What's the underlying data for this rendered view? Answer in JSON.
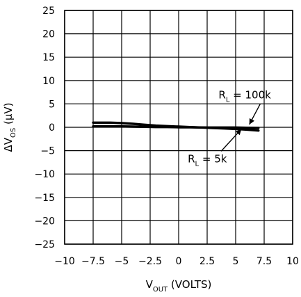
{
  "chart_data": {
    "type": "line",
    "xlabel": {
      "main": "V",
      "sub": "OUT",
      "rest": " (VOLTS)"
    },
    "ylabel": {
      "main": "ΔV",
      "sub": "OS",
      "rest": " (μV)"
    },
    "xlim": [
      -10,
      10
    ],
    "ylim": [
      -25,
      25
    ],
    "x_ticks": [
      -10,
      -7.5,
      -5,
      -2.5,
      0,
      2.5,
      5,
      7.5,
      10
    ],
    "x_tick_labels": [
      "−10",
      "−7.5",
      "−5",
      "−2.5",
      "0",
      "2.5",
      "5",
      "7.5",
      "10"
    ],
    "y_ticks": [
      25,
      20,
      15,
      10,
      5,
      0,
      -5,
      -10,
      -15,
      -20,
      -25
    ],
    "y_tick_labels": [
      "25",
      "20",
      "15",
      "10",
      "5",
      "0",
      "−5",
      "−10",
      "−15",
      "−20",
      "−25"
    ],
    "grid": true,
    "series": [
      {
        "name": "R_L = 100k",
        "label_main": "R",
        "label_sub": "L",
        "label_rest": " = 100k",
        "x": [
          -7.5,
          -6,
          -5,
          -4,
          -3,
          -2,
          -1,
          0,
          1,
          2,
          3,
          4,
          5,
          6,
          7
        ],
        "y": [
          1.0,
          1.0,
          0.9,
          0.75,
          0.55,
          0.35,
          0.25,
          0.15,
          0.05,
          -0.05,
          -0.15,
          -0.25,
          -0.35,
          -0.5,
          -0.7
        ]
      },
      {
        "name": "R_L = 5k",
        "label_main": "R",
        "label_sub": "L",
        "label_rest": " = 5k",
        "x": [
          -7.5,
          -6,
          -5,
          -4,
          -3,
          -2,
          -1,
          0,
          1,
          2,
          3,
          4,
          5,
          6,
          7
        ],
        "y": [
          0.2,
          0.2,
          0.2,
          0.15,
          0.1,
          0.05,
          0.05,
          0.0,
          0.0,
          -0.05,
          -0.05,
          -0.05,
          -0.05,
          -0.1,
          -0.15
        ]
      }
    ],
    "annotations": [
      {
        "series": 0,
        "text_x": 3.5,
        "text_y": 6.2,
        "point_x": 6.2,
        "point_y": 0.6
      },
      {
        "series": 1,
        "text_x": 0.8,
        "text_y": -7.5,
        "point_x": 5.5,
        "point_y": -0.4
      }
    ]
  }
}
